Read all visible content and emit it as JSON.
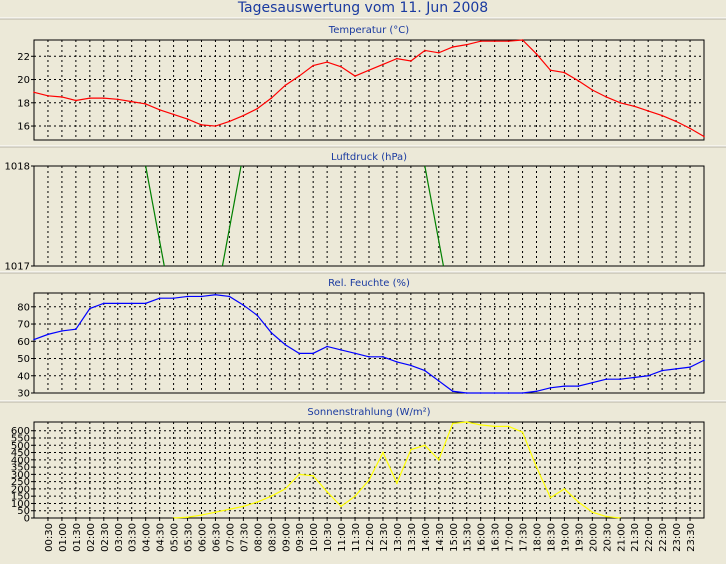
{
  "page_title": "Tagesauswertung vom 11. Jun 2008",
  "x_ticks": [
    "00:30",
    "01:00",
    "01:30",
    "02:00",
    "02:30",
    "03:00",
    "03:30",
    "04:00",
    "04:30",
    "05:00",
    "05:30",
    "06:00",
    "06:30",
    "07:00",
    "07:30",
    "08:00",
    "08:30",
    "09:00",
    "09:30",
    "10:00",
    "10:30",
    "11:00",
    "11:30",
    "12:00",
    "12:30",
    "13:00",
    "13:30",
    "14:00",
    "14:30",
    "15:00",
    "15:30",
    "16:00",
    "16:30",
    "17:00",
    "17:30",
    "18:00",
    "18:30",
    "19:00",
    "19:30",
    "20:00",
    "20:30",
    "21:00",
    "21:30",
    "22:00",
    "22:30",
    "23:00",
    "23:30"
  ],
  "chart_data": [
    {
      "type": "line",
      "title": "Temperatur (°C)",
      "color": "#ff0000",
      "grid": true,
      "ylim": [
        14.8,
        23.4
      ],
      "yticks": [
        16,
        18,
        20,
        22
      ],
      "x": [
        "00:00",
        "00:30",
        "01:00",
        "01:30",
        "02:00",
        "02:30",
        "03:00",
        "03:30",
        "04:00",
        "04:30",
        "05:00",
        "05:30",
        "06:00",
        "06:30",
        "07:00",
        "07:30",
        "08:00",
        "08:30",
        "09:00",
        "09:30",
        "10:00",
        "10:30",
        "11:00",
        "11:30",
        "12:00",
        "12:30",
        "13:00",
        "13:30",
        "14:00",
        "14:30",
        "15:00",
        "15:30",
        "16:00",
        "16:30",
        "17:00",
        "17:30",
        "18:00",
        "18:30",
        "19:00",
        "19:30",
        "20:00",
        "20:30",
        "21:00",
        "21:30",
        "22:00",
        "22:30",
        "23:00",
        "23:30",
        "24:00"
      ],
      "values": [
        18.9,
        18.6,
        18.5,
        18.2,
        18.4,
        18.4,
        18.3,
        18.1,
        17.9,
        17.4,
        17.0,
        16.6,
        16.1,
        16.0,
        16.4,
        16.9,
        17.5,
        18.4,
        19.5,
        20.3,
        21.2,
        21.5,
        21.1,
        20.3,
        20.8,
        21.3,
        21.8,
        21.6,
        22.5,
        22.3,
        22.8,
        23.0,
        23.3,
        23.3,
        23.3,
        23.4,
        22.2,
        20.8,
        20.6,
        19.9,
        19.1,
        18.5,
        18.0,
        17.7,
        17.3,
        16.9,
        16.4,
        15.8,
        15.1
      ]
    },
    {
      "type": "line",
      "title": "Luftdruck (hPa)",
      "color": "#008000",
      "grid": true,
      "ylim": [
        1017,
        1018
      ],
      "yticks": [
        1017,
        1018
      ],
      "segments": [
        [
          [
            "04:00",
            1018.0
          ],
          [
            "04:40",
            1017.0
          ]
        ],
        [
          [
            "06:45",
            1017.0
          ],
          [
            "07:25",
            1018.0
          ]
        ],
        [
          [
            "14:00",
            1018.0
          ],
          [
            "14:40",
            1017.0
          ]
        ]
      ]
    },
    {
      "type": "line",
      "title": "Rel. Feuchte (%)",
      "color": "#0000ff",
      "grid": true,
      "ylim": [
        30,
        88
      ],
      "yticks": [
        30,
        40,
        50,
        60,
        70,
        80
      ],
      "x": [
        "00:00",
        "00:30",
        "01:00",
        "01:30",
        "02:00",
        "02:30",
        "03:00",
        "03:30",
        "04:00",
        "04:30",
        "05:00",
        "05:30",
        "06:00",
        "06:30",
        "07:00",
        "07:30",
        "08:00",
        "08:30",
        "09:00",
        "09:30",
        "10:00",
        "10:30",
        "11:00",
        "11:30",
        "12:00",
        "12:30",
        "13:00",
        "13:30",
        "14:00",
        "14:30",
        "15:00",
        "15:30",
        "16:00",
        "16:30",
        "17:00",
        "17:30",
        "18:00",
        "18:30",
        "19:00",
        "19:30",
        "20:00",
        "20:30",
        "21:00",
        "21:30",
        "22:00",
        "22:30",
        "23:00",
        "23:30",
        "24:00"
      ],
      "values": [
        61,
        64,
        66,
        67,
        79,
        82,
        82,
        82,
        82,
        85,
        85,
        86,
        86,
        87,
        86,
        81,
        75,
        65,
        58,
        53,
        53,
        57,
        55,
        53,
        51,
        51,
        48,
        46,
        43,
        37,
        31,
        30,
        30,
        30,
        30,
        30,
        31,
        33,
        34,
        34,
        36,
        38,
        38,
        39,
        40,
        43,
        44,
        45,
        49
      ]
    },
    {
      "type": "line",
      "title": "Sonnenstrahlung (W/m²)",
      "color": "#ffff00",
      "grid": true,
      "ylim": [
        0,
        660
      ],
      "yticks": [
        0,
        50,
        100,
        150,
        200,
        250,
        300,
        350,
        400,
        450,
        500,
        550,
        600
      ],
      "x": [
        "05:00",
        "05:30",
        "06:00",
        "06:30",
        "07:00",
        "07:30",
        "08:00",
        "08:30",
        "09:00",
        "09:30",
        "10:00",
        "10:30",
        "11:00",
        "11:30",
        "12:00",
        "12:30",
        "13:00",
        "13:30",
        "14:00",
        "14:30",
        "15:00",
        "15:30",
        "16:00",
        "16:30",
        "17:00",
        "17:30",
        "18:00",
        "18:30",
        "19:00",
        "19:30",
        "20:00",
        "20:30",
        "21:00"
      ],
      "values": [
        0,
        5,
        20,
        40,
        60,
        80,
        110,
        150,
        200,
        300,
        290,
        180,
        80,
        150,
        260,
        450,
        240,
        470,
        500,
        400,
        650,
        660,
        640,
        630,
        630,
        590,
        350,
        140,
        200,
        110,
        40,
        10,
        0
      ]
    }
  ]
}
